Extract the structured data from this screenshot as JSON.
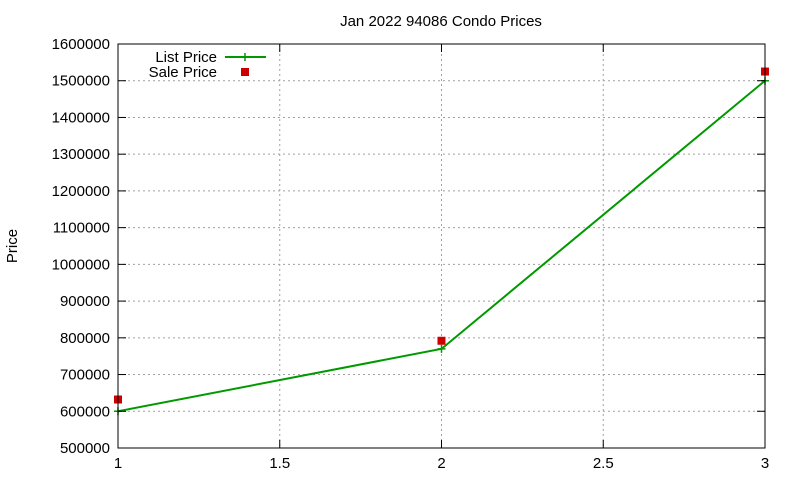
{
  "chart_data": {
    "type": "line",
    "title": "Jan 2022 94086 Condo Prices",
    "xlabel": "",
    "ylabel": "Price",
    "xlim": [
      1,
      3
    ],
    "ylim": [
      500000,
      1600000
    ],
    "xticks": [
      1,
      1.5,
      2,
      2.5,
      3
    ],
    "xtick_labels": [
      "1",
      "1.5",
      "2",
      "2.5",
      "3"
    ],
    "yticks": [
      500000,
      600000,
      700000,
      800000,
      900000,
      1000000,
      1100000,
      1200000,
      1300000,
      1400000,
      1500000,
      1600000
    ],
    "ytick_labels": [
      "500000",
      "600000",
      "700000",
      "800000",
      "900000",
      "1000000",
      "1100000",
      "1200000",
      "1300000",
      "1400000",
      "1500000",
      "1600000"
    ],
    "grid": true,
    "legend_position": "top-left",
    "series": [
      {
        "name": "List Price",
        "style": "line-points",
        "marker": "plus",
        "color": "#009900",
        "x": [
          1,
          2,
          3
        ],
        "y": [
          600000,
          770000,
          1500000
        ]
      },
      {
        "name": "Sale Price",
        "style": "points",
        "marker": "square",
        "color": "#cc0000",
        "x": [
          1,
          2,
          3
        ],
        "y": [
          632000,
          792000,
          1525000
        ]
      }
    ]
  }
}
